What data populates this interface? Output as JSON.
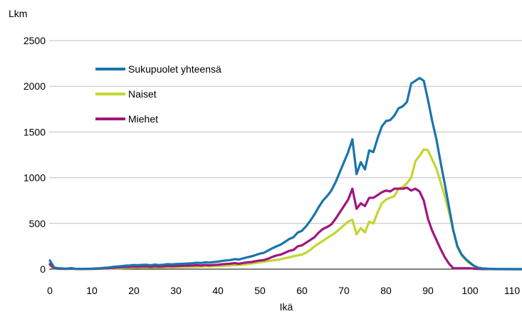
{
  "chart_data": {
    "type": "line",
    "ylabel": "Lkm",
    "xlabel": "Ikä",
    "xlim": [
      0,
      113
    ],
    "ylim": [
      0,
      2500
    ],
    "xticks": [
      0,
      10,
      20,
      30,
      40,
      50,
      60,
      70,
      80,
      90,
      100,
      110
    ],
    "yticks": [
      0,
      500,
      1000,
      1500,
      2000,
      2500
    ],
    "grid": "horizontal",
    "legend": "top-left",
    "series": [
      {
        "name": "Sukupuolet yhteensä",
        "color": "#1a74ad",
        "x": [
          0,
          1,
          2,
          3,
          4,
          5,
          6,
          7,
          8,
          9,
          10,
          11,
          12,
          13,
          14,
          15,
          16,
          17,
          18,
          19,
          20,
          21,
          22,
          23,
          24,
          25,
          26,
          27,
          28,
          29,
          30,
          31,
          32,
          33,
          34,
          35,
          36,
          37,
          38,
          39,
          40,
          41,
          42,
          43,
          44,
          45,
          46,
          47,
          48,
          49,
          50,
          51,
          52,
          53,
          54,
          55,
          56,
          57,
          58,
          59,
          60,
          61,
          62,
          63,
          64,
          65,
          66,
          67,
          68,
          69,
          70,
          71,
          72,
          73,
          74,
          75,
          76,
          77,
          78,
          79,
          80,
          81,
          82,
          83,
          84,
          85,
          86,
          87,
          88,
          89,
          90,
          91,
          92,
          93,
          94,
          95,
          96,
          97,
          98,
          99,
          100,
          101,
          102,
          103,
          104,
          105,
          106,
          107,
          108,
          109,
          110,
          111,
          112,
          113
        ],
        "values": [
          95,
          18,
          10,
          8,
          5,
          12,
          4,
          3,
          3,
          4,
          5,
          8,
          10,
          15,
          18,
          25,
          28,
          33,
          38,
          40,
          45,
          43,
          47,
          48,
          42,
          50,
          45,
          48,
          55,
          52,
          55,
          58,
          60,
          62,
          65,
          70,
          68,
          75,
          72,
          78,
          82,
          90,
          95,
          100,
          110,
          105,
          118,
          130,
          140,
          155,
          170,
          180,
          205,
          230,
          250,
          270,
          300,
          330,
          350,
          400,
          420,
          470,
          530,
          600,
          680,
          750,
          800,
          860,
          950,
          1060,
          1170,
          1280,
          1420,
          1040,
          1170,
          1090,
          1300,
          1280,
          1430,
          1560,
          1620,
          1630,
          1680,
          1760,
          1780,
          1830,
          2030,
          2060,
          2090,
          2060,
          1850,
          1620,
          1420,
          1170,
          930,
          680,
          430,
          250,
          160,
          110,
          70,
          35,
          15,
          8,
          5,
          3,
          2,
          1,
          1,
          1,
          0,
          0,
          0,
          0
        ]
      },
      {
        "name": "Naiset",
        "color": "#c3d62e",
        "x": [
          0,
          1,
          2,
          3,
          4,
          5,
          6,
          7,
          8,
          9,
          10,
          11,
          12,
          13,
          14,
          15,
          16,
          17,
          18,
          19,
          20,
          21,
          22,
          23,
          24,
          25,
          26,
          27,
          28,
          29,
          30,
          31,
          32,
          33,
          34,
          35,
          36,
          37,
          38,
          39,
          40,
          41,
          42,
          43,
          44,
          45,
          46,
          47,
          48,
          49,
          50,
          51,
          52,
          53,
          54,
          55,
          56,
          57,
          58,
          59,
          60,
          61,
          62,
          63,
          64,
          65,
          66,
          67,
          68,
          69,
          70,
          71,
          72,
          73,
          74,
          75,
          76,
          77,
          78,
          79,
          80,
          81,
          82,
          83,
          84,
          85,
          86,
          87,
          88,
          89,
          90,
          91,
          92,
          93,
          94,
          95,
          96,
          97,
          98,
          99,
          100,
          101,
          102,
          103,
          104,
          105,
          106,
          107,
          108,
          109,
          110,
          111,
          112,
          113
        ],
        "values": [
          40,
          8,
          5,
          4,
          2,
          5,
          2,
          1,
          1,
          2,
          2,
          3,
          4,
          6,
          7,
          10,
          10,
          12,
          14,
          15,
          16,
          16,
          18,
          18,
          16,
          18,
          17,
          18,
          20,
          20,
          21,
          22,
          23,
          24,
          25,
          27,
          28,
          30,
          30,
          32,
          34,
          36,
          38,
          40,
          44,
          46,
          50,
          55,
          62,
          68,
          75,
          80,
          90,
          95,
          100,
          110,
          120,
          130,
          140,
          150,
          160,
          180,
          210,
          250,
          280,
          310,
          340,
          370,
          400,
          440,
          480,
          520,
          540,
          380,
          450,
          400,
          520,
          500,
          620,
          720,
          760,
          780,
          800,
          880,
          900,
          940,
          1000,
          1180,
          1240,
          1310,
          1300,
          1200,
          1100,
          950,
          800,
          620,
          420,
          240,
          150,
          100,
          60,
          30,
          13,
          7,
          4,
          2,
          1,
          1,
          0,
          0,
          0,
          0,
          0,
          0
        ]
      },
      {
        "name": "Miehet",
        "color": "#a0167e",
        "x": [
          0,
          1,
          2,
          3,
          4,
          5,
          6,
          7,
          8,
          9,
          10,
          11,
          12,
          13,
          14,
          15,
          16,
          17,
          18,
          19,
          20,
          21,
          22,
          23,
          24,
          25,
          26,
          27,
          28,
          29,
          30,
          31,
          32,
          33,
          34,
          35,
          36,
          37,
          38,
          39,
          40,
          41,
          42,
          43,
          44,
          45,
          46,
          47,
          48,
          49,
          50,
          51,
          52,
          53,
          54,
          55,
          56,
          57,
          58,
          59,
          60,
          61,
          62,
          63,
          64,
          65,
          66,
          67,
          68,
          69,
          70,
          71,
          72,
          73,
          74,
          75,
          76,
          77,
          78,
          79,
          80,
          81,
          82,
          83,
          84,
          85,
          86,
          87,
          88,
          89,
          90,
          91,
          92,
          93,
          94,
          95,
          96,
          97,
          98,
          99,
          100,
          101,
          102,
          103,
          104,
          105,
          106,
          107,
          108,
          109,
          110,
          111,
          112,
          113
        ],
        "values": [
          55,
          10,
          5,
          4,
          3,
          7,
          2,
          2,
          2,
          2,
          3,
          5,
          6,
          9,
          11,
          15,
          18,
          21,
          24,
          25,
          29,
          27,
          29,
          30,
          26,
          32,
          28,
          30,
          35,
          32,
          34,
          36,
          37,
          38,
          40,
          43,
          40,
          45,
          42,
          46,
          48,
          54,
          57,
          60,
          66,
          59,
          68,
          75,
          78,
          87,
          95,
          100,
          115,
          135,
          150,
          160,
          180,
          200,
          210,
          250,
          260,
          290,
          320,
          350,
          400,
          440,
          460,
          490,
          550,
          620,
          690,
          760,
          880,
          660,
          720,
          690,
          780,
          780,
          810,
          840,
          860,
          850,
          880,
          880,
          880,
          890,
          860,
          880,
          850,
          750,
          550,
          420,
          320,
          220,
          130,
          60,
          10,
          10,
          10,
          10,
          10,
          5,
          2,
          1,
          1,
          1,
          0,
          0,
          0,
          0,
          0,
          0,
          0,
          0
        ]
      }
    ]
  }
}
